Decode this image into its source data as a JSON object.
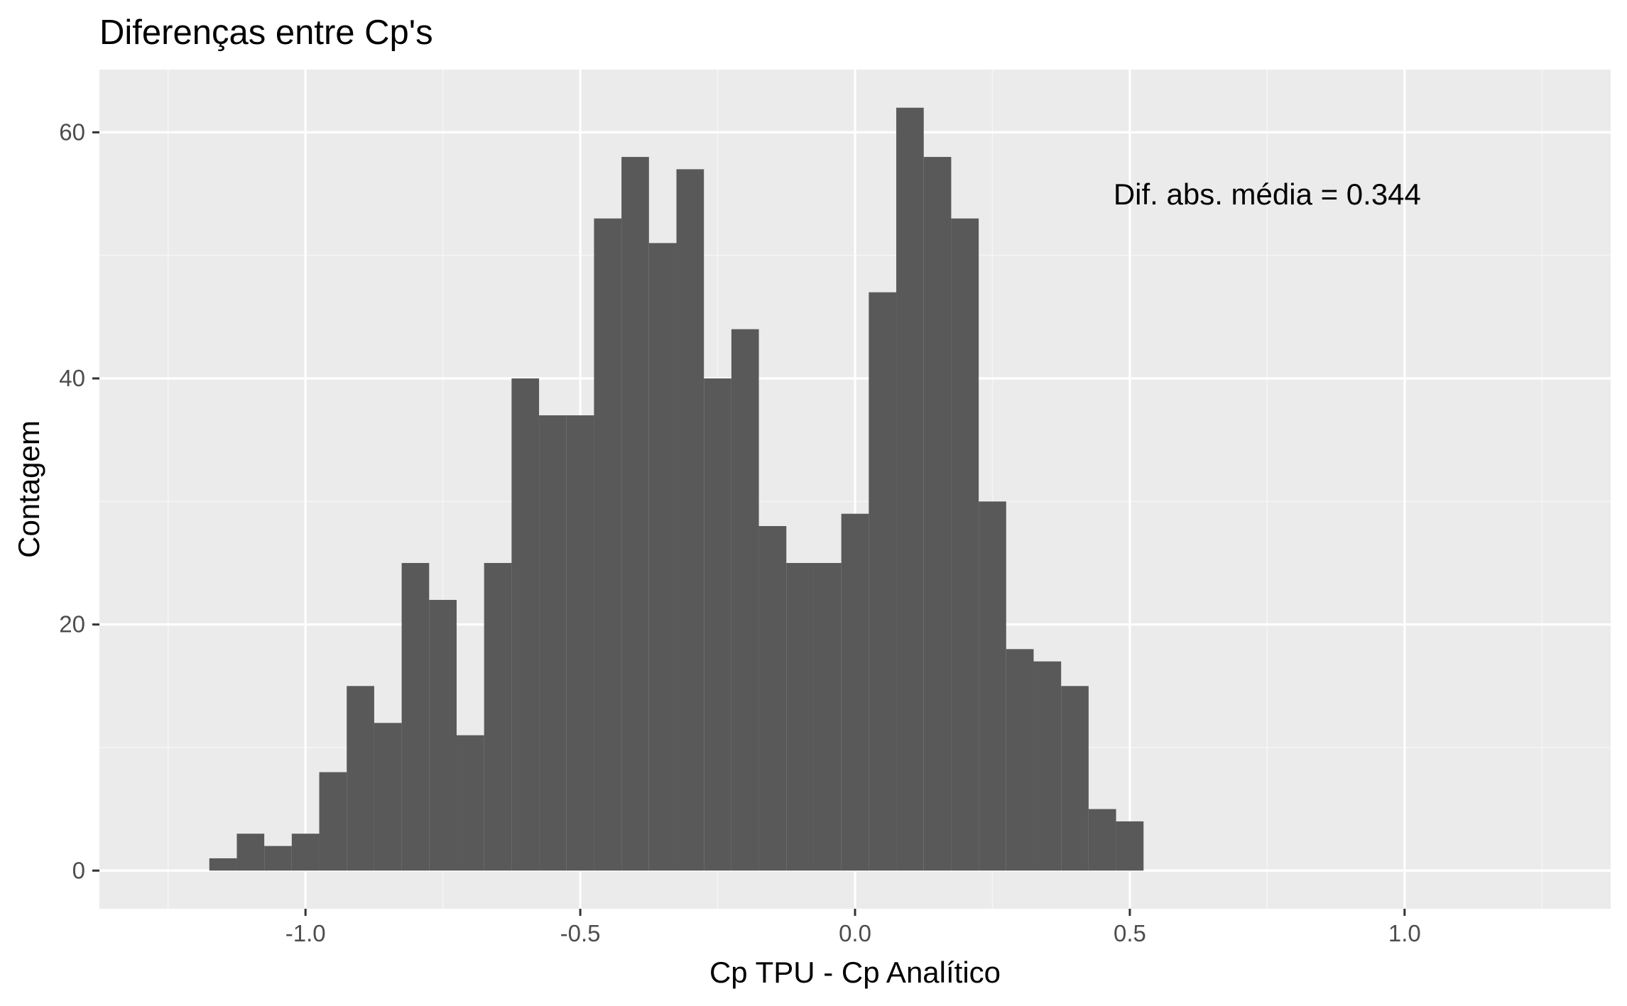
{
  "colors": {
    "panel": "#ebebeb",
    "grid_major": "#ffffff",
    "grid_minor": "#f5f5f5",
    "bar": "#595959",
    "tick": "#333333"
  },
  "chart_data": {
    "type": "bar",
    "subtype": "histogram",
    "title": "Diferenças entre Cp's",
    "xlabel": "Cp TPU - Cp Analítico",
    "ylabel": "Contagem",
    "xlim": [
      -1.375,
      1.375
    ],
    "ylim": [
      -3.1,
      65.1
    ],
    "x_ticks": [
      -1.0,
      -0.5,
      0.0,
      0.5,
      1.0
    ],
    "x_tick_labels": [
      "-1.0",
      "-0.5",
      "0.0",
      "0.5",
      "1.0"
    ],
    "y_ticks": [
      0,
      20,
      40,
      60
    ],
    "y_tick_labels": [
      "0",
      "20",
      "40",
      "60"
    ],
    "grid": true,
    "bin_width": 0.05,
    "bin_starts": [
      -1.175,
      -1.125,
      -1.075,
      -1.025,
      -0.975,
      -0.925,
      -0.875,
      -0.825,
      -0.775,
      -0.725,
      -0.675,
      -0.625,
      -0.575,
      -0.525,
      -0.475,
      -0.425,
      -0.375,
      -0.325,
      -0.275,
      -0.225,
      -0.175,
      -0.125,
      -0.075,
      -0.025,
      0.025,
      0.075,
      0.125,
      0.175,
      0.225,
      0.275,
      0.325,
      0.375,
      0.425,
      0.475
    ],
    "values": [
      1,
      3,
      2,
      3,
      8,
      15,
      12,
      25,
      22,
      11,
      25,
      40,
      37,
      37,
      53,
      58,
      51,
      57,
      40,
      44,
      28,
      25,
      25,
      29,
      47,
      62,
      58,
      53,
      30,
      18,
      17,
      15,
      5,
      4
    ],
    "annotation": {
      "text": "Dif. abs. média = 0.344",
      "x": 0.75,
      "y": 55
    }
  }
}
